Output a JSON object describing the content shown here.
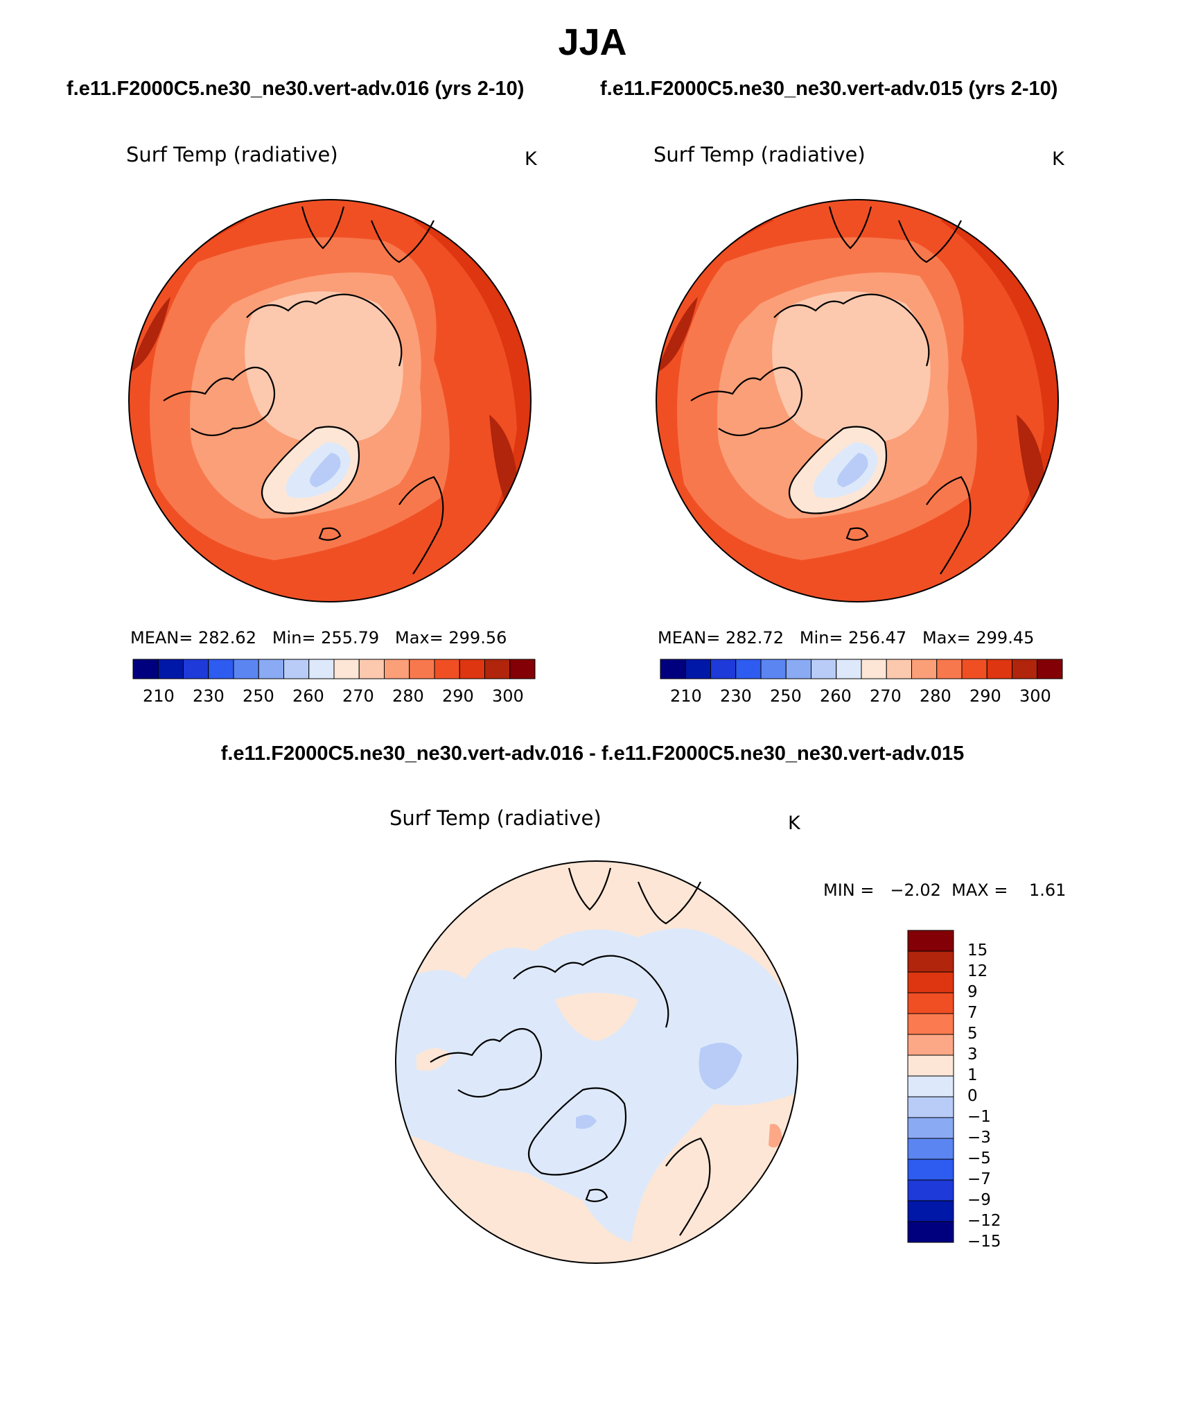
{
  "page": {
    "title": "JJA",
    "left_subtitle": "f.e11.F2000C5.ne30_ne30.vert-adv.016 (yrs 2-10)",
    "right_subtitle": "f.e11.F2000C5.ne30_ne30.vert-adv.015 (yrs 2-10)",
    "diff_title": "f.e11.F2000C5.ne30_ne30.vert-adv.016 - f.e11.F2000C5.ne30_ne30.vert-adv.015"
  },
  "panels": {
    "left": {
      "variable": "Surf Temp (radiative)",
      "units": "K",
      "stats": "MEAN= 282.62   Min= 255.79   Max= 299.56",
      "colorbar_ticks": [
        "210",
        "230",
        "250",
        "260",
        "270",
        "280",
        "290",
        "300"
      ]
    },
    "right": {
      "variable": "Surf Temp (radiative)",
      "units": "K",
      "stats": "MEAN= 282.72   Min= 256.47   Max= 299.45",
      "colorbar_ticks": [
        "210",
        "230",
        "250",
        "260",
        "270",
        "280",
        "290",
        "300"
      ]
    },
    "diff": {
      "variable": "Surf Temp (radiative)",
      "units": "K",
      "stats": "MIN =   −2.02  MAX =    1.61",
      "colorbar_ticks": [
        "15",
        "12",
        "9",
        "7",
        "5",
        "3",
        "1",
        "0",
        "−1",
        "−3",
        "−5",
        "−7",
        "−9",
        "−12",
        "−15"
      ]
    }
  },
  "colors": {
    "abs_scale": [
      "#00007f",
      "#0018a8",
      "#1e3ad8",
      "#2e5cf0",
      "#5b86f2",
      "#8aaaf4",
      "#b8ccf7",
      "#dde9fa",
      "#fde6d6",
      "#fcc9ae",
      "#fb9f78",
      "#f8784d",
      "#f04f24",
      "#dd3610",
      "#b0250b",
      "#830006"
    ],
    "diff_scale": [
      "#830006",
      "#b0250b",
      "#dd3610",
      "#f04f24",
      "#fb7a4f",
      "#fca887",
      "#fde6d6",
      "#dde9fa",
      "#b8ccf7",
      "#8aaaf4",
      "#5b86f2",
      "#2e5cf0",
      "#1e3ad8",
      "#0018a8",
      "#00007f"
    ]
  }
}
